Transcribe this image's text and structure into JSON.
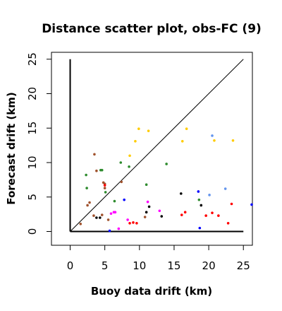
{
  "chart_data": {
    "type": "scatter",
    "title": "Distance scatter plot, obs-FC (9)",
    "xlabel": "Buoy data drift (km)",
    "ylabel": "Forecast drift (km)",
    "xlim": [
      -2.7,
      26.3
    ],
    "ylim": [
      -2.0,
      26.0
    ],
    "xticks": [
      0,
      5,
      10,
      15,
      20,
      25
    ],
    "yticks": [
      0,
      5,
      10,
      15,
      20,
      25
    ],
    "xtick_labels": [
      "0",
      "5",
      "10",
      "15",
      "20",
      "25"
    ],
    "ytick_labels": [
      "0",
      "5",
      "10",
      "15",
      "20",
      "25"
    ],
    "grid": false,
    "legend": "none",
    "reference_lines": [
      {
        "name": "identity",
        "x": [
          0,
          25
        ],
        "y": [
          0,
          25
        ],
        "color": "#000000"
      },
      {
        "name": "y-axis-baseline",
        "x": [
          0,
          0
        ],
        "y": [
          0,
          25
        ],
        "color": "#000000"
      },
      {
        "name": "x-axis-baseline",
        "x": [
          0,
          25
        ],
        "y": [
          0,
          0
        ],
        "color": "#000000"
      }
    ],
    "series": [
      {
        "color": "#ffcc00",
        "points": [
          [
            8.6,
            11.0
          ],
          [
            9.4,
            13.1
          ],
          [
            9.9,
            14.9
          ],
          [
            11.3,
            14.6
          ],
          [
            16.2,
            13.1
          ],
          [
            16.8,
            14.9
          ],
          [
            20.8,
            13.2
          ],
          [
            23.5,
            13.2
          ]
        ]
      },
      {
        "color": "#2e8b2e",
        "points": [
          [
            2.3,
            8.2
          ],
          [
            2.4,
            6.3
          ],
          [
            4.4,
            8.9
          ],
          [
            4.6,
            8.9
          ],
          [
            5.1,
            5.7
          ],
          [
            6.4,
            4.4
          ],
          [
            7.3,
            10.0
          ],
          [
            8.5,
            9.4
          ],
          [
            11.0,
            6.8
          ],
          [
            13.9,
            9.8
          ],
          [
            18.6,
            4.6
          ]
        ]
      },
      {
        "color": "#a0522d",
        "points": [
          [
            1.5,
            1.1
          ],
          [
            2.5,
            3.8
          ],
          [
            2.8,
            4.2
          ],
          [
            3.4,
            2.3
          ],
          [
            3.5,
            11.2
          ],
          [
            3.8,
            8.8
          ],
          [
            4.6,
            2.4
          ],
          [
            4.8,
            7.1
          ],
          [
            5.0,
            6.3
          ],
          [
            5.0,
            6.9
          ],
          [
            5.5,
            1.7
          ],
          [
            7.4,
            7.2
          ],
          [
            10.8,
            2.1
          ]
        ]
      },
      {
        "color": "#000000",
        "points": [
          [
            3.8,
            2.0
          ],
          [
            4.3,
            2.0
          ],
          [
            11.0,
            2.8
          ],
          [
            11.4,
            3.6
          ],
          [
            13.2,
            2.2
          ],
          [
            16.0,
            5.5
          ],
          [
            18.9,
            3.8
          ]
        ]
      },
      {
        "color": "#ff00ff",
        "points": [
          [
            5.9,
            2.6
          ],
          [
            6.3,
            2.8
          ],
          [
            6.5,
            2.8
          ],
          [
            7.0,
            0.4
          ],
          [
            8.3,
            1.7
          ],
          [
            11.2,
            4.3
          ],
          [
            12.9,
            3.0
          ]
        ]
      },
      {
        "color": "#ff0000",
        "points": [
          [
            5.0,
            6.7
          ],
          [
            8.6,
            1.2
          ],
          [
            9.1,
            1.3
          ],
          [
            9.6,
            1.2
          ],
          [
            16.1,
            2.4
          ],
          [
            16.6,
            2.8
          ],
          [
            19.6,
            2.3
          ],
          [
            20.5,
            2.7
          ],
          [
            21.4,
            2.3
          ],
          [
            22.8,
            1.2
          ],
          [
            23.3,
            4.0
          ]
        ]
      },
      {
        "color": "#0000ff",
        "points": [
          [
            5.7,
            0.1
          ],
          [
            7.8,
            4.6
          ],
          [
            18.5,
            5.8
          ],
          [
            18.7,
            0.5
          ],
          [
            26.2,
            3.9
          ]
        ]
      },
      {
        "color": "#6495ed",
        "points": [
          [
            20.1,
            5.3
          ],
          [
            20.5,
            13.9
          ],
          [
            22.4,
            6.2
          ]
        ]
      }
    ]
  }
}
